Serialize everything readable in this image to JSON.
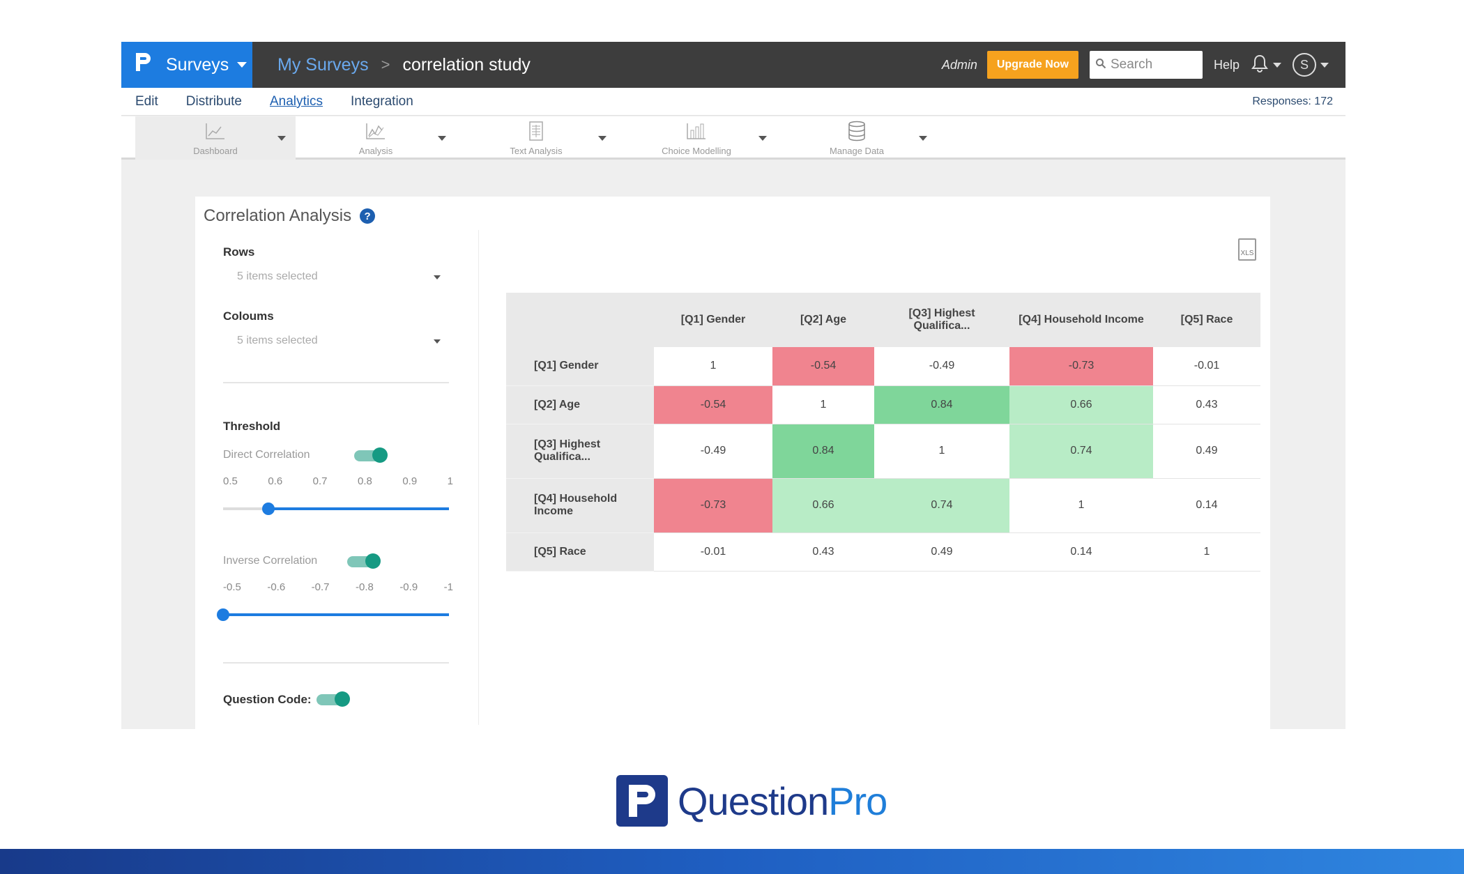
{
  "topbar": {
    "brand_label": "Surveys",
    "breadcrumb_root": "My Surveys",
    "breadcrumb_separator": ">",
    "breadcrumb_current": "correlation study",
    "admin_label": "Admin",
    "upgrade_label": "Upgrade Now",
    "search_placeholder": "Search",
    "help_label": "Help",
    "profile_initial": "S"
  },
  "subnav": {
    "items": [
      {
        "label": "Edit"
      },
      {
        "label": "Distribute"
      },
      {
        "label": "Analytics"
      },
      {
        "label": "Integration"
      }
    ],
    "active": "Analytics",
    "responses": "Responses: 172"
  },
  "toolbar": {
    "items": [
      {
        "label": "Dashboard",
        "icon": "line-chart-icon"
      },
      {
        "label": "Analysis",
        "icon": "analysis-chart-icon"
      },
      {
        "label": "Text Analysis",
        "icon": "text-doc-icon"
      },
      {
        "label": "Choice Modelling",
        "icon": "bar-chart-icon"
      },
      {
        "label": "Manage Data",
        "icon": "database-icon"
      }
    ],
    "active": "Dashboard"
  },
  "panel": {
    "title": "Correlation Analysis",
    "help_symbol": "?",
    "rows_label": "Rows",
    "rows_value": "5 items selected",
    "columns_label": "Coloums",
    "columns_value": "5 items selected",
    "threshold_label": "Threshold",
    "direct_label": "Direct Correlation",
    "direct_ticks": [
      "0.5",
      "0.6",
      "0.7",
      "0.8",
      "0.9",
      "1"
    ],
    "direct_value": 0.6,
    "inverse_label": "Inverse Correlation",
    "inverse_ticks": [
      "-0.5",
      "-0.6",
      "-0.7",
      "-0.8",
      "-0.9",
      "-1"
    ],
    "inverse_value": -0.5,
    "question_code_label": "Question Code:",
    "export_label": "XLS"
  },
  "table": {
    "columns": [
      "[Q1] Gender",
      "[Q2] Age",
      "[Q3] Highest Qualifica...",
      "[Q4] Household Income",
      "[Q5] Race"
    ],
    "rows": [
      {
        "label": "[Q1] Gender",
        "values": [
          "1",
          "-0.54",
          "-0.49",
          "-0.73",
          "-0.01"
        ]
      },
      {
        "label": "[Q2] Age",
        "values": [
          "-0.54",
          "1",
          "0.84",
          "0.66",
          "0.43"
        ]
      },
      {
        "label": "[Q3] Highest Qualifica...",
        "values": [
          "-0.49",
          "0.84",
          "1",
          "0.74",
          "0.49"
        ]
      },
      {
        "label": "[Q4] Household Income",
        "values": [
          "-0.73",
          "0.66",
          "0.74",
          "1",
          "0.14"
        ]
      },
      {
        "label": "[Q5] Race",
        "values": [
          "-0.01",
          "0.43",
          "0.49",
          "0.14",
          "1"
        ]
      }
    ]
  },
  "footer": {
    "logo_part1": "Question",
    "logo_part2": "Pro"
  },
  "colors": {
    "brand_blue": "#1d7ce0",
    "upgrade_orange": "#f6a21e",
    "negative": "#f0848f",
    "positive_strong": "#7fd69a",
    "positive_mid": "#b8ecc6"
  }
}
